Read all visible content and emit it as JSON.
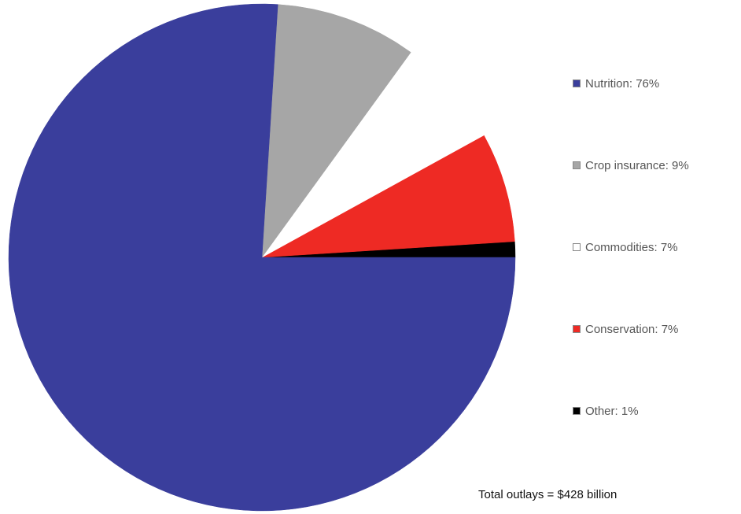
{
  "chart_data": {
    "type": "pie",
    "categories": [
      "Nutrition",
      "Crop insurance",
      "Commodities",
      "Conservation",
      "Other"
    ],
    "values": [
      76,
      9,
      7,
      7,
      1
    ],
    "unit": "%",
    "colors": [
      "#3a3e9c",
      "#a6a6a6",
      "#ffffff",
      "#ee2a24",
      "#000000"
    ],
    "legend": {
      "position": "right",
      "labels": [
        "Nutrition: 76%",
        "Crop insurance: 9%",
        "Commodities: 7%",
        "Conservation: 7%",
        "Other: 1%"
      ]
    },
    "annotation": "Total outlays = $428 billion",
    "start_angle_deg": 0,
    "direction": "counterclockwise"
  }
}
